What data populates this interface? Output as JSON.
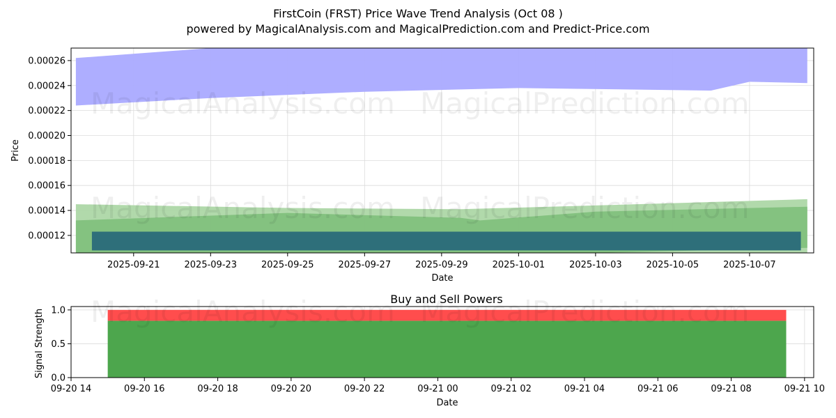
{
  "header": {
    "title": "FirstCoin (FRST) Price Wave Trend Analysis (Oct 08 )",
    "subtitle": "powered by MagicalAnalysis.com and MagicalPrediction.com and Predict-Price.com"
  },
  "watermarks": [
    "MagicalAnalysis.com",
    "MagicalPrediction.com"
  ],
  "chart_data": [
    {
      "type": "area",
      "title": "",
      "xlabel": "Date",
      "ylabel": "Price",
      "x_range": [
        "2025-09-19T09:00",
        "2025-10-08T16:00"
      ],
      "ylim": [
        0.000106,
        0.00027
      ],
      "grid": true,
      "x_ticks": [
        "2025-09-21",
        "2025-09-23",
        "2025-09-25",
        "2025-09-27",
        "2025-09-29",
        "2025-10-01",
        "2025-10-03",
        "2025-10-05",
        "2025-10-07"
      ],
      "y_ticks": [
        "0.00012",
        "0.00014",
        "0.00016",
        "0.00018",
        "0.00020",
        "0.00022",
        "0.00024",
        "0.00026"
      ],
      "bands": [
        {
          "color": "#aaaaff",
          "x": [
            "2025-09-19T12:00",
            "2025-09-23T00:00",
            "2025-09-27T00:00",
            "2025-10-01T00:00",
            "2025-10-06T00:00",
            "2025-10-07T00:00",
            "2025-10-08T12:00"
          ],
          "upper": [
            0.000262,
            0.00027,
            0.00027,
            0.00027,
            0.00027,
            0.00027,
            0.00027
          ],
          "lower": [
            0.000224,
            0.00023,
            0.000235,
            0.000238,
            0.000236,
            0.000243,
            0.000242
          ]
        },
        {
          "color": "#a8d5a2",
          "x": [
            "2025-09-19T12:00",
            "2025-09-25T00:00",
            "2025-09-29T12:00",
            "2025-10-03T00:00",
            "2025-10-08T12:00"
          ],
          "upper": [
            0.000145,
            0.000142,
            0.000141,
            0.000144,
            0.000149
          ],
          "lower": [
            0.000106,
            0.000106,
            0.000106,
            0.000106,
            0.000106
          ]
        },
        {
          "color": "#7fbf7b",
          "x": [
            "2025-09-19T12:00",
            "2025-09-25T00:00",
            "2025-09-29T12:00",
            "2025-09-30T00:00",
            "2025-10-03T00:00",
            "2025-10-08T12:00"
          ],
          "upper": [
            0.000132,
            0.000138,
            0.000134,
            0.000132,
            0.000139,
            0.000143
          ],
          "lower": [
            0.000106,
            0.000106,
            0.000106,
            0.000106,
            0.000106,
            0.00011
          ]
        }
      ],
      "rects": [
        {
          "color": "#2e6f7a",
          "x0": "2025-09-19T22:00",
          "x1": "2025-10-08T08:00",
          "y0": 0.000108,
          "y1": 0.000123
        }
      ]
    },
    {
      "type": "bar",
      "title": "Buy and Sell Powers",
      "xlabel": "Date",
      "ylabel": "Signal Strength",
      "x_range": [
        "2025-09-20T14:00",
        "2025-09-21T10:15"
      ],
      "ylim": [
        0,
        1.05
      ],
      "grid": true,
      "x_ticks": [
        "09-20 14",
        "09-20 16",
        "09-20 18",
        "09-20 20",
        "09-20 22",
        "09-21 00",
        "09-21 02",
        "09-21 04",
        "09-21 06",
        "09-21 08",
        "09-21 10"
      ],
      "y_ticks": [
        "0.0",
        "0.5",
        "1.0"
      ],
      "series": [
        {
          "name": "",
          "color": "#4da64d",
          "x0": "2025-09-20T15:00",
          "x1": "2025-09-21T09:30",
          "values": [
            0.84
          ]
        },
        {
          "name": "",
          "color": "#ff4d4d",
          "x0": "2025-09-20T15:00",
          "x1": "2025-09-21T09:30",
          "values": [
            0.16
          ]
        }
      ]
    }
  ]
}
